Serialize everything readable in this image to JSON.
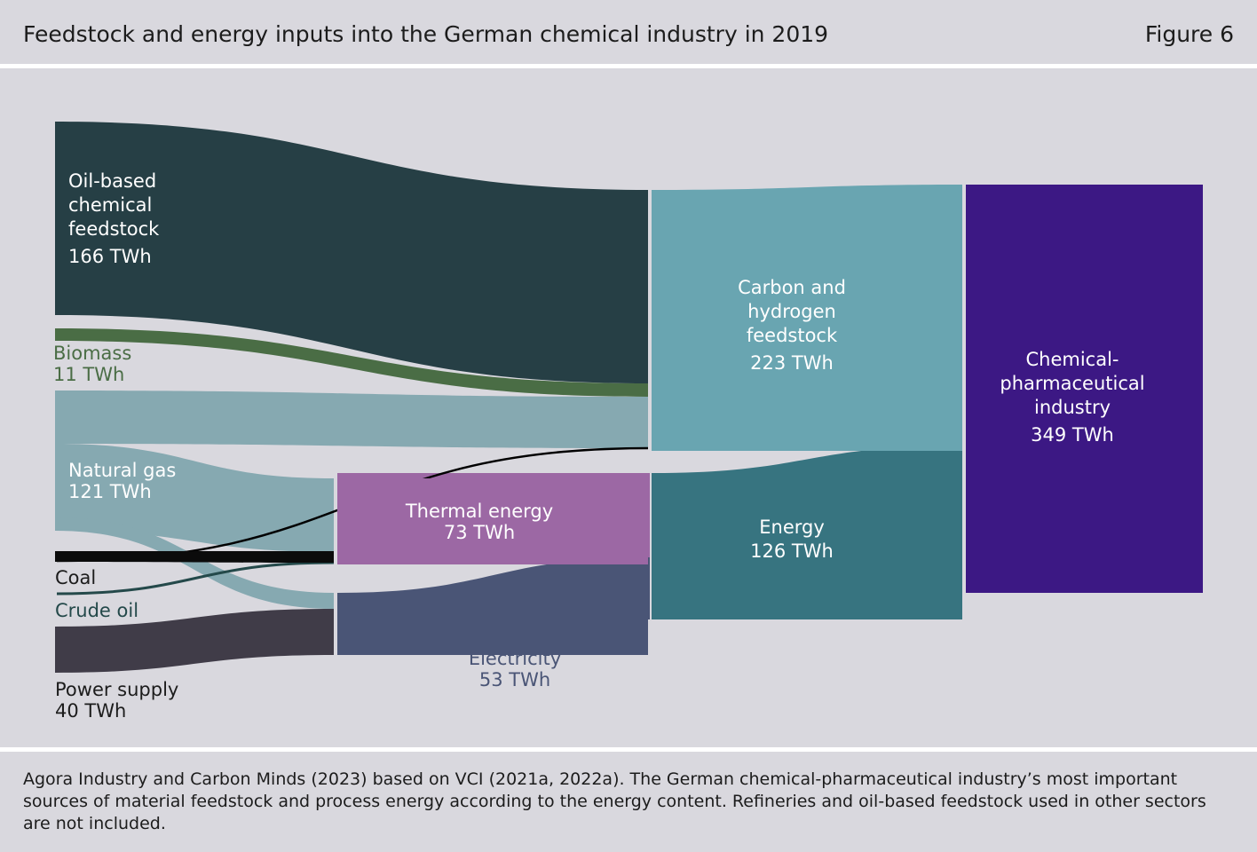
{
  "header": {
    "title": "Feedstock and energy inputs into the German chemical industry in 2019",
    "figure_label": "Figure 6"
  },
  "footer": {
    "source_text": "Agora Industry and Carbon Minds (2023) based on VCI (2021a, 2022a). The German chemical-pharmaceutical industry’s most important sources of material feedstock and process energy according to the energy content. Refineries and oil-based feedstock used in other sectors are not included."
  },
  "chart_data": {
    "type": "sankey",
    "unit": "TWh",
    "colors": {
      "oil": "#263f45",
      "biomass": "#4a6d45",
      "natural_gas": "#86a9b1",
      "coal": "#0b0b0b",
      "crude_oil": "#24494a",
      "power_supply": "#403c48",
      "thermal": "#9c68a4",
      "electricity": "#4a5576",
      "carbon_hydrogen": "#69a5b1",
      "energy": "#377480",
      "industry": "#3c1884",
      "label_green": "#4a6d45",
      "label_dark": "#1c1c1c",
      "label_elec": "#4a5576"
    },
    "nodes": [
      {
        "id": "oil",
        "label_lines": [
          "Oil-based",
          "chemical",
          "feedstock"
        ],
        "value_label": "166 TWh",
        "value": 166
      },
      {
        "id": "biomass",
        "label_lines": [
          "Biomass"
        ],
        "value_label": "11 TWh",
        "value": 11
      },
      {
        "id": "natural_gas",
        "label_lines": [
          "Natural gas"
        ],
        "value_label": "121 TWh",
        "value": 121
      },
      {
        "id": "coal",
        "label_lines": [
          "Coal"
        ],
        "value_label": "",
        "value": null
      },
      {
        "id": "crude_oil",
        "label_lines": [
          "Crude oil"
        ],
        "value_label": "",
        "value": null
      },
      {
        "id": "power_supply",
        "label_lines": [
          "Power supply"
        ],
        "value_label": "40 TWh",
        "value": 40
      },
      {
        "id": "thermal",
        "label_lines": [
          "Thermal energy"
        ],
        "value_label": "73 TWh",
        "value": 73
      },
      {
        "id": "electricity",
        "label_lines": [
          "Electricity"
        ],
        "value_label": "53 TWh",
        "value": 53
      },
      {
        "id": "carbon_hydrogen",
        "label_lines": [
          "Carbon and",
          "hydrogen",
          "feedstock"
        ],
        "value_label": "223 TWh",
        "value": 223
      },
      {
        "id": "energy",
        "label_lines": [
          "Energy"
        ],
        "value_label": "126 TWh",
        "value": 126
      },
      {
        "id": "industry",
        "label_lines": [
          "Chemical-",
          "pharmaceutical",
          "industry"
        ],
        "value_label": "349 TWh",
        "value": 349
      }
    ],
    "links": [
      {
        "source": "oil",
        "target": "carbon_hydrogen"
      },
      {
        "source": "biomass",
        "target": "carbon_hydrogen"
      },
      {
        "source": "natural_gas",
        "target": "carbon_hydrogen"
      },
      {
        "source": "coal",
        "target": "carbon_hydrogen"
      },
      {
        "source": "natural_gas",
        "target": "thermal"
      },
      {
        "source": "coal",
        "target": "thermal"
      },
      {
        "source": "crude_oil",
        "target": "thermal"
      },
      {
        "source": "natural_gas",
        "target": "electricity"
      },
      {
        "source": "power_supply",
        "target": "electricity"
      },
      {
        "source": "thermal",
        "target": "energy"
      },
      {
        "source": "electricity",
        "target": "energy"
      },
      {
        "source": "carbon_hydrogen",
        "target": "industry"
      },
      {
        "source": "energy",
        "target": "industry"
      }
    ]
  }
}
